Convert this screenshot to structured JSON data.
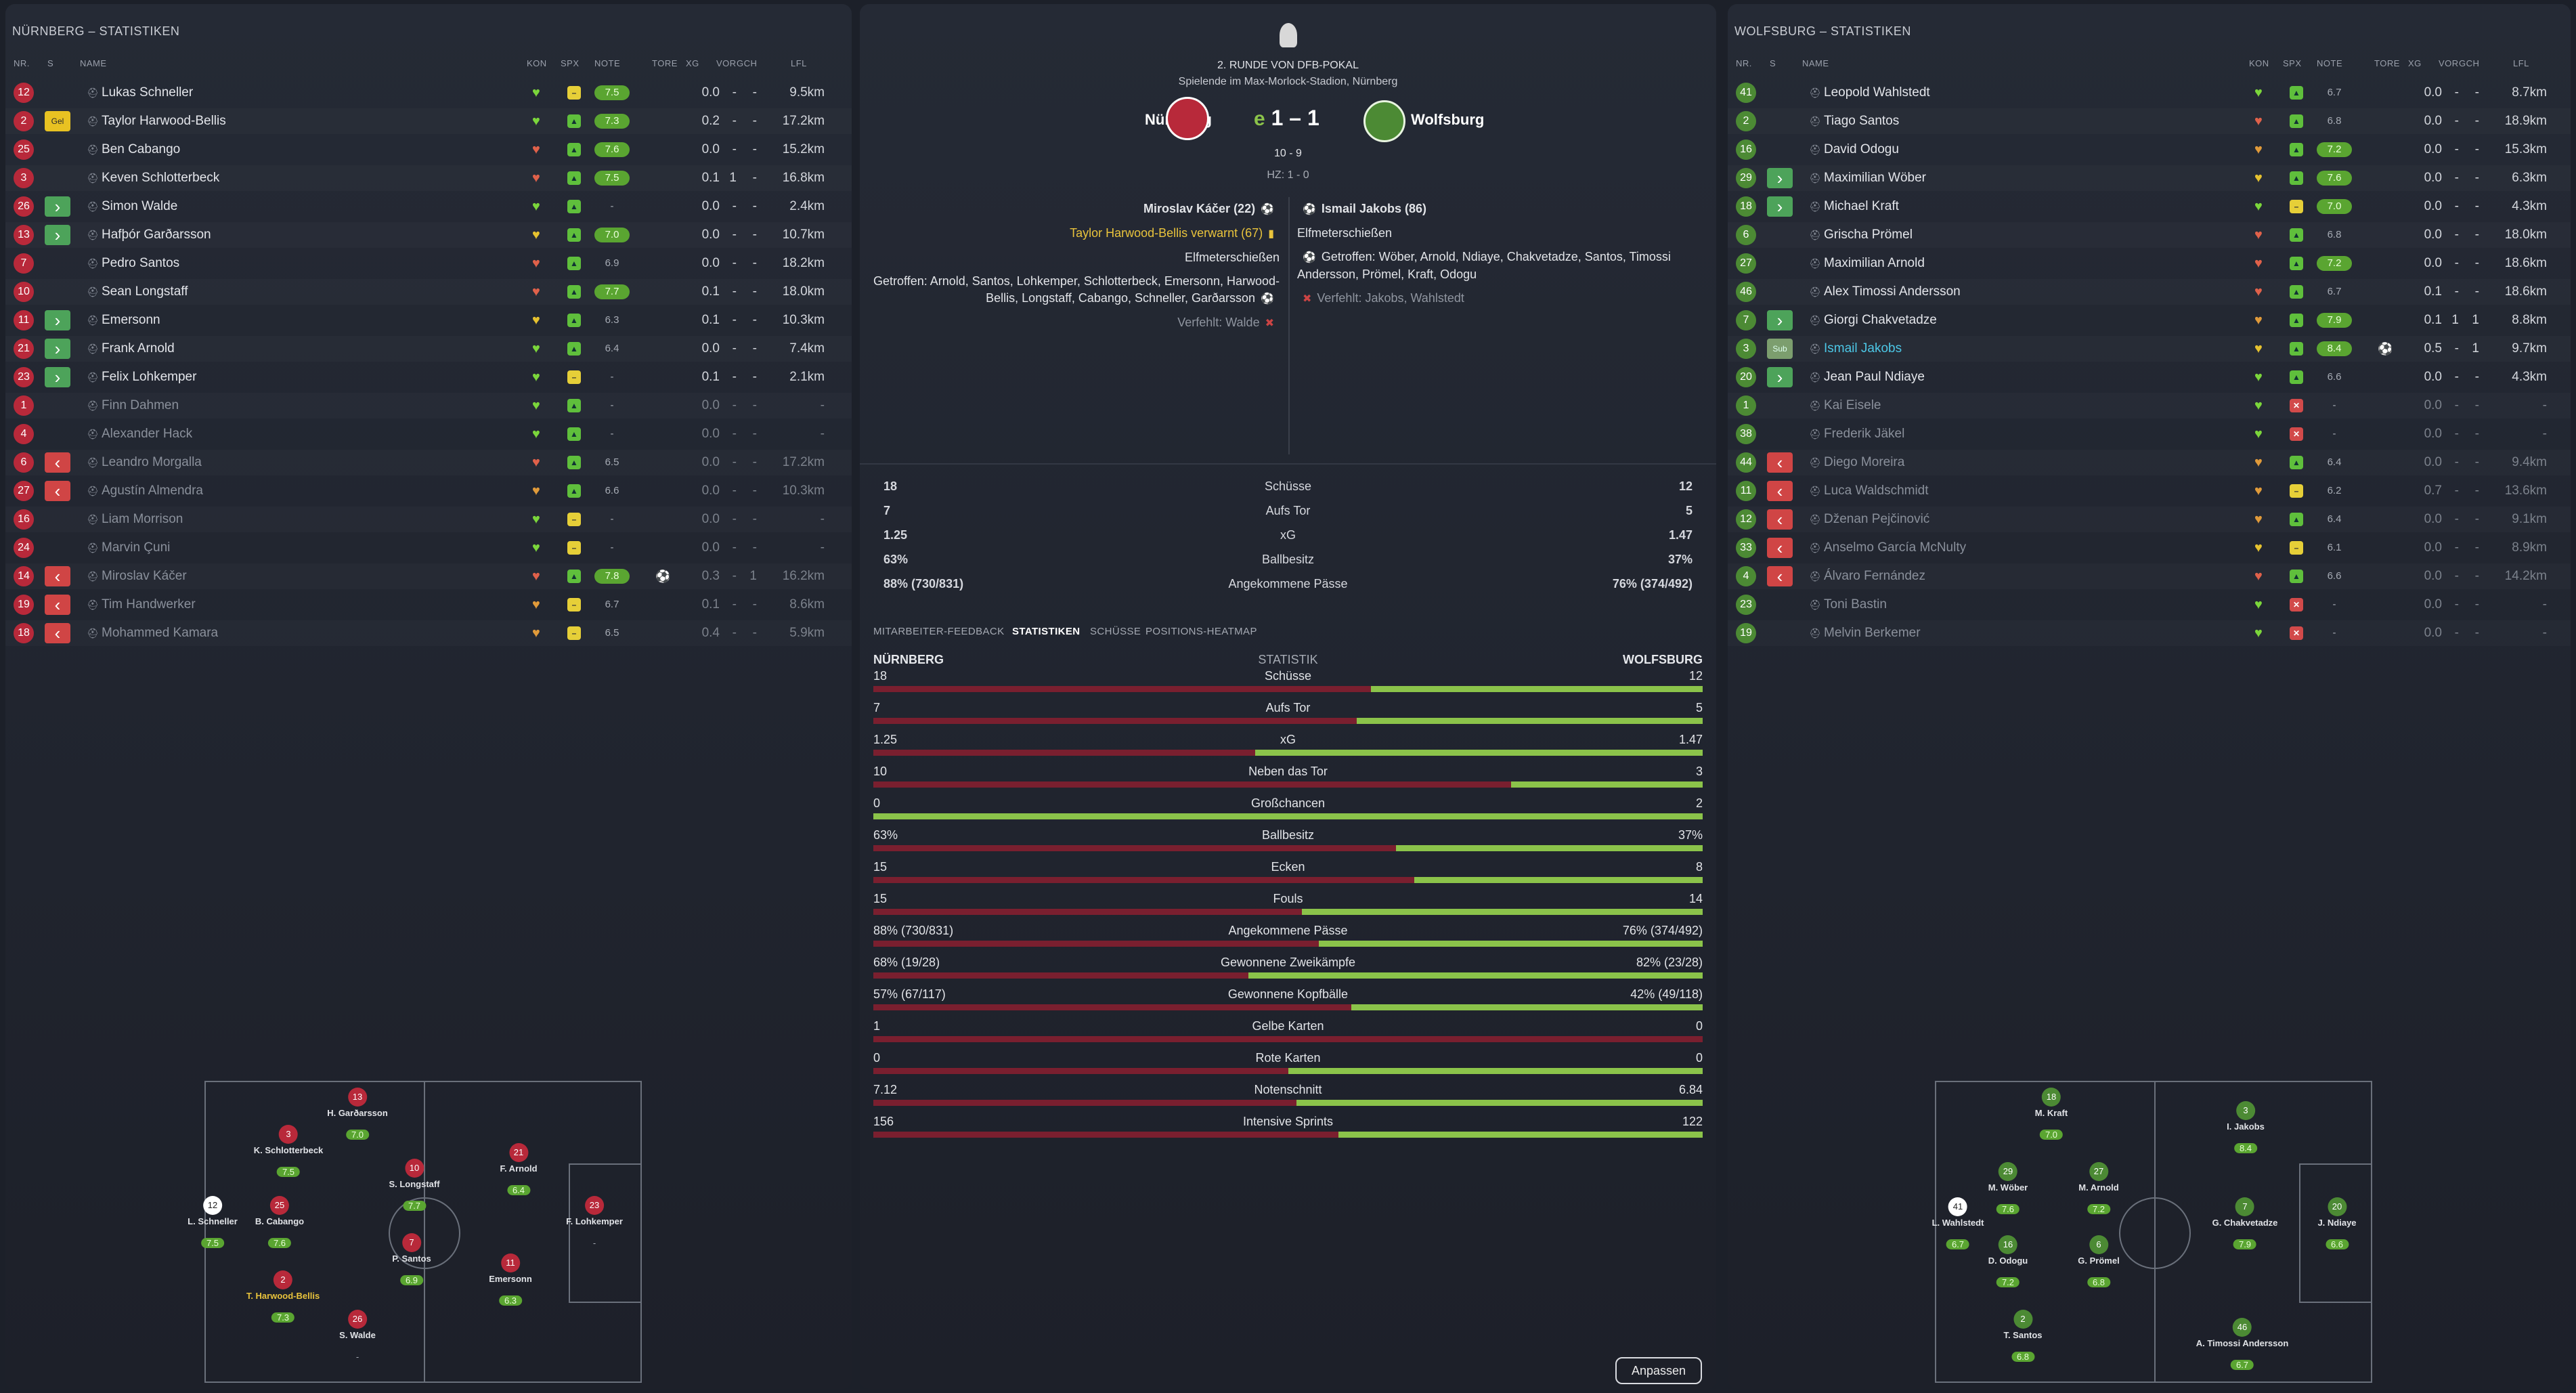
{
  "left": {
    "title": "NÜRNBERG – STATISTIKEN",
    "headers": [
      "NR.",
      "S",
      "NAME",
      "KON",
      "SPX",
      "NOTE",
      "TORE",
      "XG",
      "VOR",
      "GCH",
      "LFL"
    ],
    "players": [
      {
        "nr": "12",
        "tag": "",
        "name": "Lukas Schneller",
        "kon": "#7bd63b",
        "spx": "y",
        "note": "7.5",
        "tore": "",
        "xg": "0.0",
        "vor": "-",
        "gch": "-",
        "lfl": "9.5km",
        "hl": true
      },
      {
        "nr": "2",
        "tag": "Gel",
        "name": "Taylor Harwood-Bellis",
        "kon": "#7bd63b",
        "spx": "g",
        "note": "7.3",
        "tore": "",
        "xg": "0.2",
        "vor": "-",
        "gch": "-",
        "lfl": "17.2km",
        "hl": true
      },
      {
        "nr": "25",
        "tag": "",
        "name": "Ben Cabango",
        "kon": "#e0614a",
        "spx": "g",
        "note": "7.6",
        "tore": "",
        "xg": "0.0",
        "vor": "-",
        "gch": "-",
        "lfl": "15.2km",
        "hl": true
      },
      {
        "nr": "3",
        "tag": "",
        "name": "Keven Schlotterbeck",
        "kon": "#e0614a",
        "spx": "g",
        "note": "7.5",
        "tore": "",
        "xg": "0.1",
        "vor": "1",
        "gch": "-",
        "lfl": "16.8km",
        "hl": true
      },
      {
        "nr": "26",
        "tag": "in",
        "name": "Simon Walde",
        "kon": "#7bd63b",
        "spx": "g",
        "note": "-",
        "tore": "",
        "xg": "0.0",
        "vor": "-",
        "gch": "-",
        "lfl": "2.4km",
        "hl": false
      },
      {
        "nr": "13",
        "tag": "in",
        "name": "Hafþór Garðarsson",
        "kon": "#e6c22f",
        "spx": "g",
        "note": "7.0",
        "tore": "",
        "xg": "0.0",
        "vor": "-",
        "gch": "-",
        "lfl": "10.7km",
        "hl": true
      },
      {
        "nr": "7",
        "tag": "",
        "name": "Pedro Santos",
        "kon": "#e0614a",
        "spx": "g",
        "note": "6.9",
        "tore": "",
        "xg": "0.0",
        "vor": "-",
        "gch": "-",
        "lfl": "18.2km",
        "hl": false
      },
      {
        "nr": "10",
        "tag": "",
        "name": "Sean Longstaff",
        "kon": "#e0614a",
        "spx": "g",
        "note": "7.7",
        "tore": "",
        "xg": "0.1",
        "vor": "-",
        "gch": "-",
        "lfl": "18.0km",
        "hl": true
      },
      {
        "nr": "11",
        "tag": "in",
        "name": "Emersonn",
        "kon": "#e6c22f",
        "spx": "g",
        "note": "6.3",
        "tore": "",
        "xg": "0.1",
        "vor": "-",
        "gch": "-",
        "lfl": "10.3km",
        "hl": false
      },
      {
        "nr": "21",
        "tag": "in",
        "name": "Frank Arnold",
        "kon": "#7bd63b",
        "spx": "g",
        "note": "6.4",
        "tore": "",
        "xg": "0.0",
        "vor": "-",
        "gch": "-",
        "lfl": "7.4km",
        "hl": false
      },
      {
        "nr": "23",
        "tag": "in",
        "name": "Felix Lohkemper",
        "kon": "#7bd63b",
        "spx": "y",
        "note": "-",
        "tore": "",
        "xg": "0.1",
        "vor": "-",
        "gch": "-",
        "lfl": "2.1km",
        "hl": false
      },
      {
        "nr": "1",
        "tag": "",
        "name": "Finn Dahmen",
        "kon": "#7bd63b",
        "spx": "g",
        "note": "-",
        "tore": "",
        "xg": "0.0",
        "vor": "-",
        "gch": "-",
        "lfl": "-",
        "hl": false,
        "dim": true
      },
      {
        "nr": "4",
        "tag": "",
        "name": "Alexander Hack",
        "kon": "#7bd63b",
        "spx": "g",
        "note": "-",
        "tore": "",
        "xg": "0.0",
        "vor": "-",
        "gch": "-",
        "lfl": "-",
        "hl": false,
        "dim": true
      },
      {
        "nr": "6",
        "tag": "out",
        "name": "Leandro Morgalla",
        "kon": "#e0614a",
        "spx": "g",
        "note": "6.5",
        "tore": "",
        "xg": "0.0",
        "vor": "-",
        "gch": "-",
        "lfl": "17.2km",
        "hl": false,
        "dim": true
      },
      {
        "nr": "27",
        "tag": "out",
        "name": "Agustín Almendra",
        "kon": "#e09a3a",
        "spx": "g",
        "note": "6.6",
        "tore": "",
        "xg": "0.0",
        "vor": "-",
        "gch": "-",
        "lfl": "10.3km",
        "hl": false,
        "dim": true
      },
      {
        "nr": "16",
        "tag": "",
        "name": "Liam Morrison",
        "kon": "#7bd63b",
        "spx": "y",
        "note": "-",
        "tore": "",
        "xg": "0.0",
        "vor": "-",
        "gch": "-",
        "lfl": "-",
        "hl": false,
        "dim": true
      },
      {
        "nr": "24",
        "tag": "",
        "name": "Marvin Çuni",
        "kon": "#7bd63b",
        "spx": "y",
        "note": "-",
        "tore": "",
        "xg": "0.0",
        "vor": "-",
        "gch": "-",
        "lfl": "-",
        "hl": false,
        "dim": true
      },
      {
        "nr": "14",
        "tag": "out",
        "name": "Miroslav Káčer",
        "kon": "#e0614a",
        "spx": "g",
        "note": "7.8",
        "tore": "⚽",
        "xg": "0.3",
        "vor": "-",
        "gch": "1",
        "lfl": "16.2km",
        "hl": true,
        "dim": true
      },
      {
        "nr": "19",
        "tag": "out",
        "name": "Tim Handwerker",
        "kon": "#e09a3a",
        "spx": "y",
        "note": "6.7",
        "tore": "",
        "xg": "0.1",
        "vor": "-",
        "gch": "-",
        "lfl": "8.6km",
        "hl": false,
        "dim": true
      },
      {
        "nr": "18",
        "tag": "out",
        "name": "Mohammed Kamara",
        "kon": "#e09a3a",
        "spx": "y",
        "note": "6.5",
        "tore": "",
        "xg": "0.4",
        "vor": "-",
        "gch": "-",
        "lfl": "5.9km",
        "hl": false,
        "dim": true
      }
    ],
    "formation": [
      {
        "nr": "13",
        "name": "H. Garðarsson",
        "rating": "7.0",
        "col": "red"
      },
      {
        "nr": "3",
        "name": "K. Schlotterbeck",
        "rating": "7.5",
        "col": "red"
      },
      {
        "nr": "10",
        "name": "S. Longstaff",
        "rating": "7.7",
        "col": "red"
      },
      {
        "nr": "21",
        "name": "F. Arnold",
        "rating": "6.4",
        "col": "red"
      },
      {
        "nr": "12",
        "name": "L. Schneller",
        "rating": "7.5",
        "col": "white"
      },
      {
        "nr": "25",
        "name": "B. Cabango",
        "rating": "7.6",
        "col": "red"
      },
      {
        "nr": "23",
        "name": "F. Lohkemper",
        "rating": "-",
        "col": "red"
      },
      {
        "nr": "7",
        "name": "P. Santos",
        "rating": "6.9",
        "col": "red"
      },
      {
        "nr": "11",
        "name": "Emersonn",
        "rating": "6.3",
        "col": "red"
      },
      {
        "nr": "2",
        "name": "T. Harwood-Bellis",
        "rating": "7.3",
        "col": "red",
        "yellow": true
      },
      {
        "nr": "26",
        "name": "S. Walde",
        "rating": "-",
        "col": "red"
      }
    ]
  },
  "right": {
    "title": "WOLFSBURG – STATISTIKEN",
    "headers": [
      "NR.",
      "S",
      "NAME",
      "KON",
      "SPX",
      "NOTE",
      "TORE",
      "XG",
      "VOR",
      "GCH",
      "LFL"
    ],
    "players": [
      {
        "nr": "41",
        "tag": "",
        "name": "Leopold Wahlstedt",
        "kon": "#7bd63b",
        "spx": "g",
        "note": "6.7",
        "tore": "",
        "xg": "0.0",
        "vor": "-",
        "gch": "-",
        "lfl": "8.7km",
        "hl": false
      },
      {
        "nr": "2",
        "tag": "",
        "name": "Tiago Santos",
        "kon": "#e0614a",
        "spx": "g",
        "note": "6.8",
        "tore": "",
        "xg": "0.0",
        "vor": "-",
        "gch": "-",
        "lfl": "18.9km",
        "hl": false
      },
      {
        "nr": "16",
        "tag": "",
        "name": "David Odogu",
        "kon": "#e09a3a",
        "spx": "g",
        "note": "7.2",
        "tore": "",
        "xg": "0.0",
        "vor": "-",
        "gch": "-",
        "lfl": "15.3km",
        "hl": true
      },
      {
        "nr": "29",
        "tag": "in",
        "name": "Maximilian Wöber",
        "kon": "#e6c22f",
        "spx": "g",
        "note": "7.6",
        "tore": "",
        "xg": "0.0",
        "vor": "-",
        "gch": "-",
        "lfl": "6.3km",
        "hl": true
      },
      {
        "nr": "18",
        "tag": "in",
        "name": "Michael Kraft",
        "kon": "#7bd63b",
        "spx": "y",
        "note": "7.0",
        "tore": "",
        "xg": "0.0",
        "vor": "-",
        "gch": "-",
        "lfl": "4.3km",
        "hl": true
      },
      {
        "nr": "6",
        "tag": "",
        "name": "Grischa Prömel",
        "kon": "#e0614a",
        "spx": "g",
        "note": "6.8",
        "tore": "",
        "xg": "0.0",
        "vor": "-",
        "gch": "-",
        "lfl": "18.0km",
        "hl": false
      },
      {
        "nr": "27",
        "tag": "",
        "name": "Maximilian Arnold",
        "kon": "#e0614a",
        "spx": "g",
        "note": "7.2",
        "tore": "",
        "xg": "0.0",
        "vor": "-",
        "gch": "-",
        "lfl": "18.6km",
        "hl": true
      },
      {
        "nr": "46",
        "tag": "",
        "name": "Alex Timossi Andersson",
        "kon": "#e0614a",
        "spx": "g",
        "note": "6.7",
        "tore": "",
        "xg": "0.1",
        "vor": "-",
        "gch": "-",
        "lfl": "18.6km",
        "hl": false
      },
      {
        "nr": "7",
        "tag": "in",
        "name": "Giorgi Chakvetadze",
        "kon": "#e09a3a",
        "spx": "g",
        "note": "7.9",
        "tore": "",
        "xg": "0.1",
        "vor": "1",
        "gch": "1",
        "lfl": "8.8km",
        "hl": true
      },
      {
        "nr": "3",
        "tag": "sub",
        "name": "Ismail Jakobs",
        "kon": "#e6c22f",
        "spx": "g",
        "note": "8.4",
        "tore": "⚽",
        "xg": "0.5",
        "vor": "-",
        "gch": "1",
        "lfl": "9.7km",
        "hl": true,
        "blue": true
      },
      {
        "nr": "20",
        "tag": "in",
        "name": "Jean Paul Ndiaye",
        "kon": "#7bd63b",
        "spx": "g",
        "note": "6.6",
        "tore": "",
        "xg": "0.0",
        "vor": "-",
        "gch": "-",
        "lfl": "4.3km",
        "hl": false
      },
      {
        "nr": "1",
        "tag": "",
        "name": "Kai Eisele",
        "kon": "#7bd63b",
        "spx": "r",
        "note": "-",
        "tore": "",
        "xg": "0.0",
        "vor": "-",
        "gch": "-",
        "lfl": "-",
        "hl": false,
        "dim": true
      },
      {
        "nr": "38",
        "tag": "",
        "name": "Frederik Jäkel",
        "kon": "#7bd63b",
        "spx": "r",
        "note": "-",
        "tore": "",
        "xg": "0.0",
        "vor": "-",
        "gch": "-",
        "lfl": "-",
        "hl": false,
        "dim": true
      },
      {
        "nr": "44",
        "tag": "out",
        "name": "Diego Moreira",
        "kon": "#e09a3a",
        "spx": "g",
        "note": "6.4",
        "tore": "",
        "xg": "0.0",
        "vor": "-",
        "gch": "-",
        "lfl": "9.4km",
        "hl": false,
        "dim": true
      },
      {
        "nr": "11",
        "tag": "out",
        "name": "Luca Waldschmidt",
        "kon": "#e09a3a",
        "spx": "y",
        "note": "6.2",
        "tore": "",
        "xg": "0.7",
        "vor": "-",
        "gch": "-",
        "lfl": "13.6km",
        "hl": false,
        "dim": true
      },
      {
        "nr": "12",
        "tag": "out",
        "name": "Dženan Pejčinović",
        "kon": "#e09a3a",
        "spx": "g",
        "note": "6.4",
        "tore": "",
        "xg": "0.0",
        "vor": "-",
        "gch": "-",
        "lfl": "9.1km",
        "hl": false,
        "dim": true
      },
      {
        "nr": "33",
        "tag": "out",
        "name": "Anselmo García McNulty",
        "kon": "#e6c22f",
        "spx": "y",
        "note": "6.1",
        "tore": "",
        "xg": "0.0",
        "vor": "-",
        "gch": "-",
        "lfl": "8.9km",
        "hl": false,
        "dim": true
      },
      {
        "nr": "4",
        "tag": "out",
        "name": "Álvaro Fernández",
        "kon": "#e0614a",
        "spx": "g",
        "note": "6.6",
        "tore": "",
        "xg": "0.0",
        "vor": "-",
        "gch": "-",
        "lfl": "14.2km",
        "hl": false,
        "dim": true
      },
      {
        "nr": "23",
        "tag": "",
        "name": "Toni Bastin",
        "kon": "#7bd63b",
        "spx": "r",
        "note": "-",
        "tore": "",
        "xg": "0.0",
        "vor": "-",
        "gch": "-",
        "lfl": "-",
        "hl": false,
        "dim": true
      },
      {
        "nr": "19",
        "tag": "",
        "name": "Melvin Berkemer",
        "kon": "#7bd63b",
        "spx": "r",
        "note": "-",
        "tore": "",
        "xg": "0.0",
        "vor": "-",
        "gch": "-",
        "lfl": "-",
        "hl": false,
        "dim": true
      }
    ],
    "formation": [
      {
        "nr": "18",
        "name": "M. Kraft",
        "rating": "7.0",
        "col": "green"
      },
      {
        "nr": "3",
        "name": "I. Jakobs",
        "rating": "8.4",
        "col": "green"
      },
      {
        "nr": "29",
        "name": "M. Wöber",
        "rating": "7.6",
        "col": "green"
      },
      {
        "nr": "27",
        "name": "M. Arnold",
        "rating": "7.2",
        "col": "green"
      },
      {
        "nr": "41",
        "name": "L. Wahlstedt",
        "rating": "6.7",
        "col": "white"
      },
      {
        "nr": "7",
        "name": "G. Chakvetadze",
        "rating": "7.9",
        "col": "green"
      },
      {
        "nr": "20",
        "name": "J. Ndiaye",
        "rating": "6.6",
        "col": "green"
      },
      {
        "nr": "16",
        "name": "D. Odogu",
        "rating": "7.2",
        "col": "green"
      },
      {
        "nr": "6",
        "name": "G. Prömel",
        "rating": "6.8",
        "col": "green"
      },
      {
        "nr": "2",
        "name": "T. Santos",
        "rating": "6.8",
        "col": "green"
      },
      {
        "nr": "46",
        "name": "A. Timossi Andersson",
        "rating": "6.7",
        "col": "green"
      }
    ]
  },
  "center": {
    "competition": "2. RUNDE VON DFB-POKAL",
    "venue": "Spielende im Max-Morlock-Stadion, Nürnberg",
    "home": "Nürnberg",
    "away": "Wolfsburg",
    "score": "1 – 1",
    "score_prefix": "e",
    "penalties": "10 - 9",
    "halftime": "HZ: 1 - 0",
    "home_events": [
      {
        "text": "Miroslav Káčer (22)",
        "icon": "ball",
        "bold": true
      },
      {
        "text": "Taylor Harwood-Bellis verwarnt (67)",
        "icon": "card",
        "yellow": true
      },
      {
        "text": "Elfmeterschießen",
        "icon": ""
      },
      {
        "text": "Getroffen: Arnold, Santos, Lohkemper, Schlotterbeck, Emersonn, Harwood-Bellis, Longstaff, Cabango, Schneller, Garðarsson",
        "icon": "ball"
      },
      {
        "text": "Verfehlt: Walde",
        "icon": "miss",
        "dim": true
      }
    ],
    "away_events": [
      {
        "text": "Ismail Jakobs (86)",
        "icon": "ball",
        "bold": true
      },
      {
        "text": "Elfmeterschießen",
        "icon": ""
      },
      {
        "text": "Getroffen: Wöber, Arnold, Ndiaye, Chakvetadze, Santos, Timossi Andersson, Prömel, Kraft, Odogu",
        "icon": "ball"
      },
      {
        "text": "Verfehlt: Jakobs, Wahlstedt",
        "icon": "miss",
        "dim": true
      }
    ],
    "summary": [
      {
        "l": "18",
        "m": "Schüsse",
        "r": "12"
      },
      {
        "l": "7",
        "m": "Aufs Tor",
        "r": "5"
      },
      {
        "l": "1.25",
        "m": "xG",
        "r": "1.47"
      },
      {
        "l": "63%",
        "m": "Ballbesitz",
        "r": "37%"
      },
      {
        "l": "88% (730/831)",
        "m": "Angekommene Pässe",
        "r": "76% (374/492)"
      }
    ],
    "tabs": [
      "MITARBEITER-FEEDBACK",
      "STATISTIKEN",
      "SCHÜSSE",
      "POSITIONS-HEATMAP"
    ],
    "active_tab": 1,
    "stats_header": {
      "home": "NÜRNBERG",
      "mid": "STATISTIK",
      "away": "WOLFSBURG"
    },
    "stats": [
      {
        "l": "18",
        "m": "Schüsse",
        "r": "12",
        "share": 0.6
      },
      {
        "l": "7",
        "m": "Aufs Tor",
        "r": "5",
        "share": 0.583
      },
      {
        "l": "1.25",
        "m": "xG",
        "r": "1.47",
        "share": 0.46
      },
      {
        "l": "10",
        "m": "Neben das Tor",
        "r": "3",
        "share": 0.769
      },
      {
        "l": "0",
        "m": "Großchancen",
        "r": "2",
        "share": 0.0
      },
      {
        "l": "63%",
        "m": "Ballbesitz",
        "r": "37%",
        "share": 0.63
      },
      {
        "l": "15",
        "m": "Ecken",
        "r": "8",
        "share": 0.652
      },
      {
        "l": "15",
        "m": "Fouls",
        "r": "14",
        "share": 0.517
      },
      {
        "l": "88% (730/831)",
        "m": "Angekommene Pässe",
        "r": "76% (374/492)",
        "share": 0.537
      },
      {
        "l": "68% (19/28)",
        "m": "Gewonnene Zweikämpfe",
        "r": "82% (23/28)",
        "share": 0.452
      },
      {
        "l": "57% (67/117)",
        "m": "Gewonnene Kopfbälle",
        "r": "42% (49/118)",
        "share": 0.576
      },
      {
        "l": "1",
        "m": "Gelbe Karten",
        "r": "0",
        "share": 1.0
      },
      {
        "l": "0",
        "m": "Rote Karten",
        "r": "0",
        "share": 0.5
      },
      {
        "l": "7.12",
        "m": "Notenschnitt",
        "r": "6.84",
        "share": 0.51
      },
      {
        "l": "156",
        "m": "Intensive Sprints",
        "r": "122",
        "share": 0.561
      }
    ],
    "button": "Anpassen"
  },
  "colors": {
    "home": "#b8293a",
    "away": "#4c8a34",
    "accent": "#8bc34a"
  }
}
